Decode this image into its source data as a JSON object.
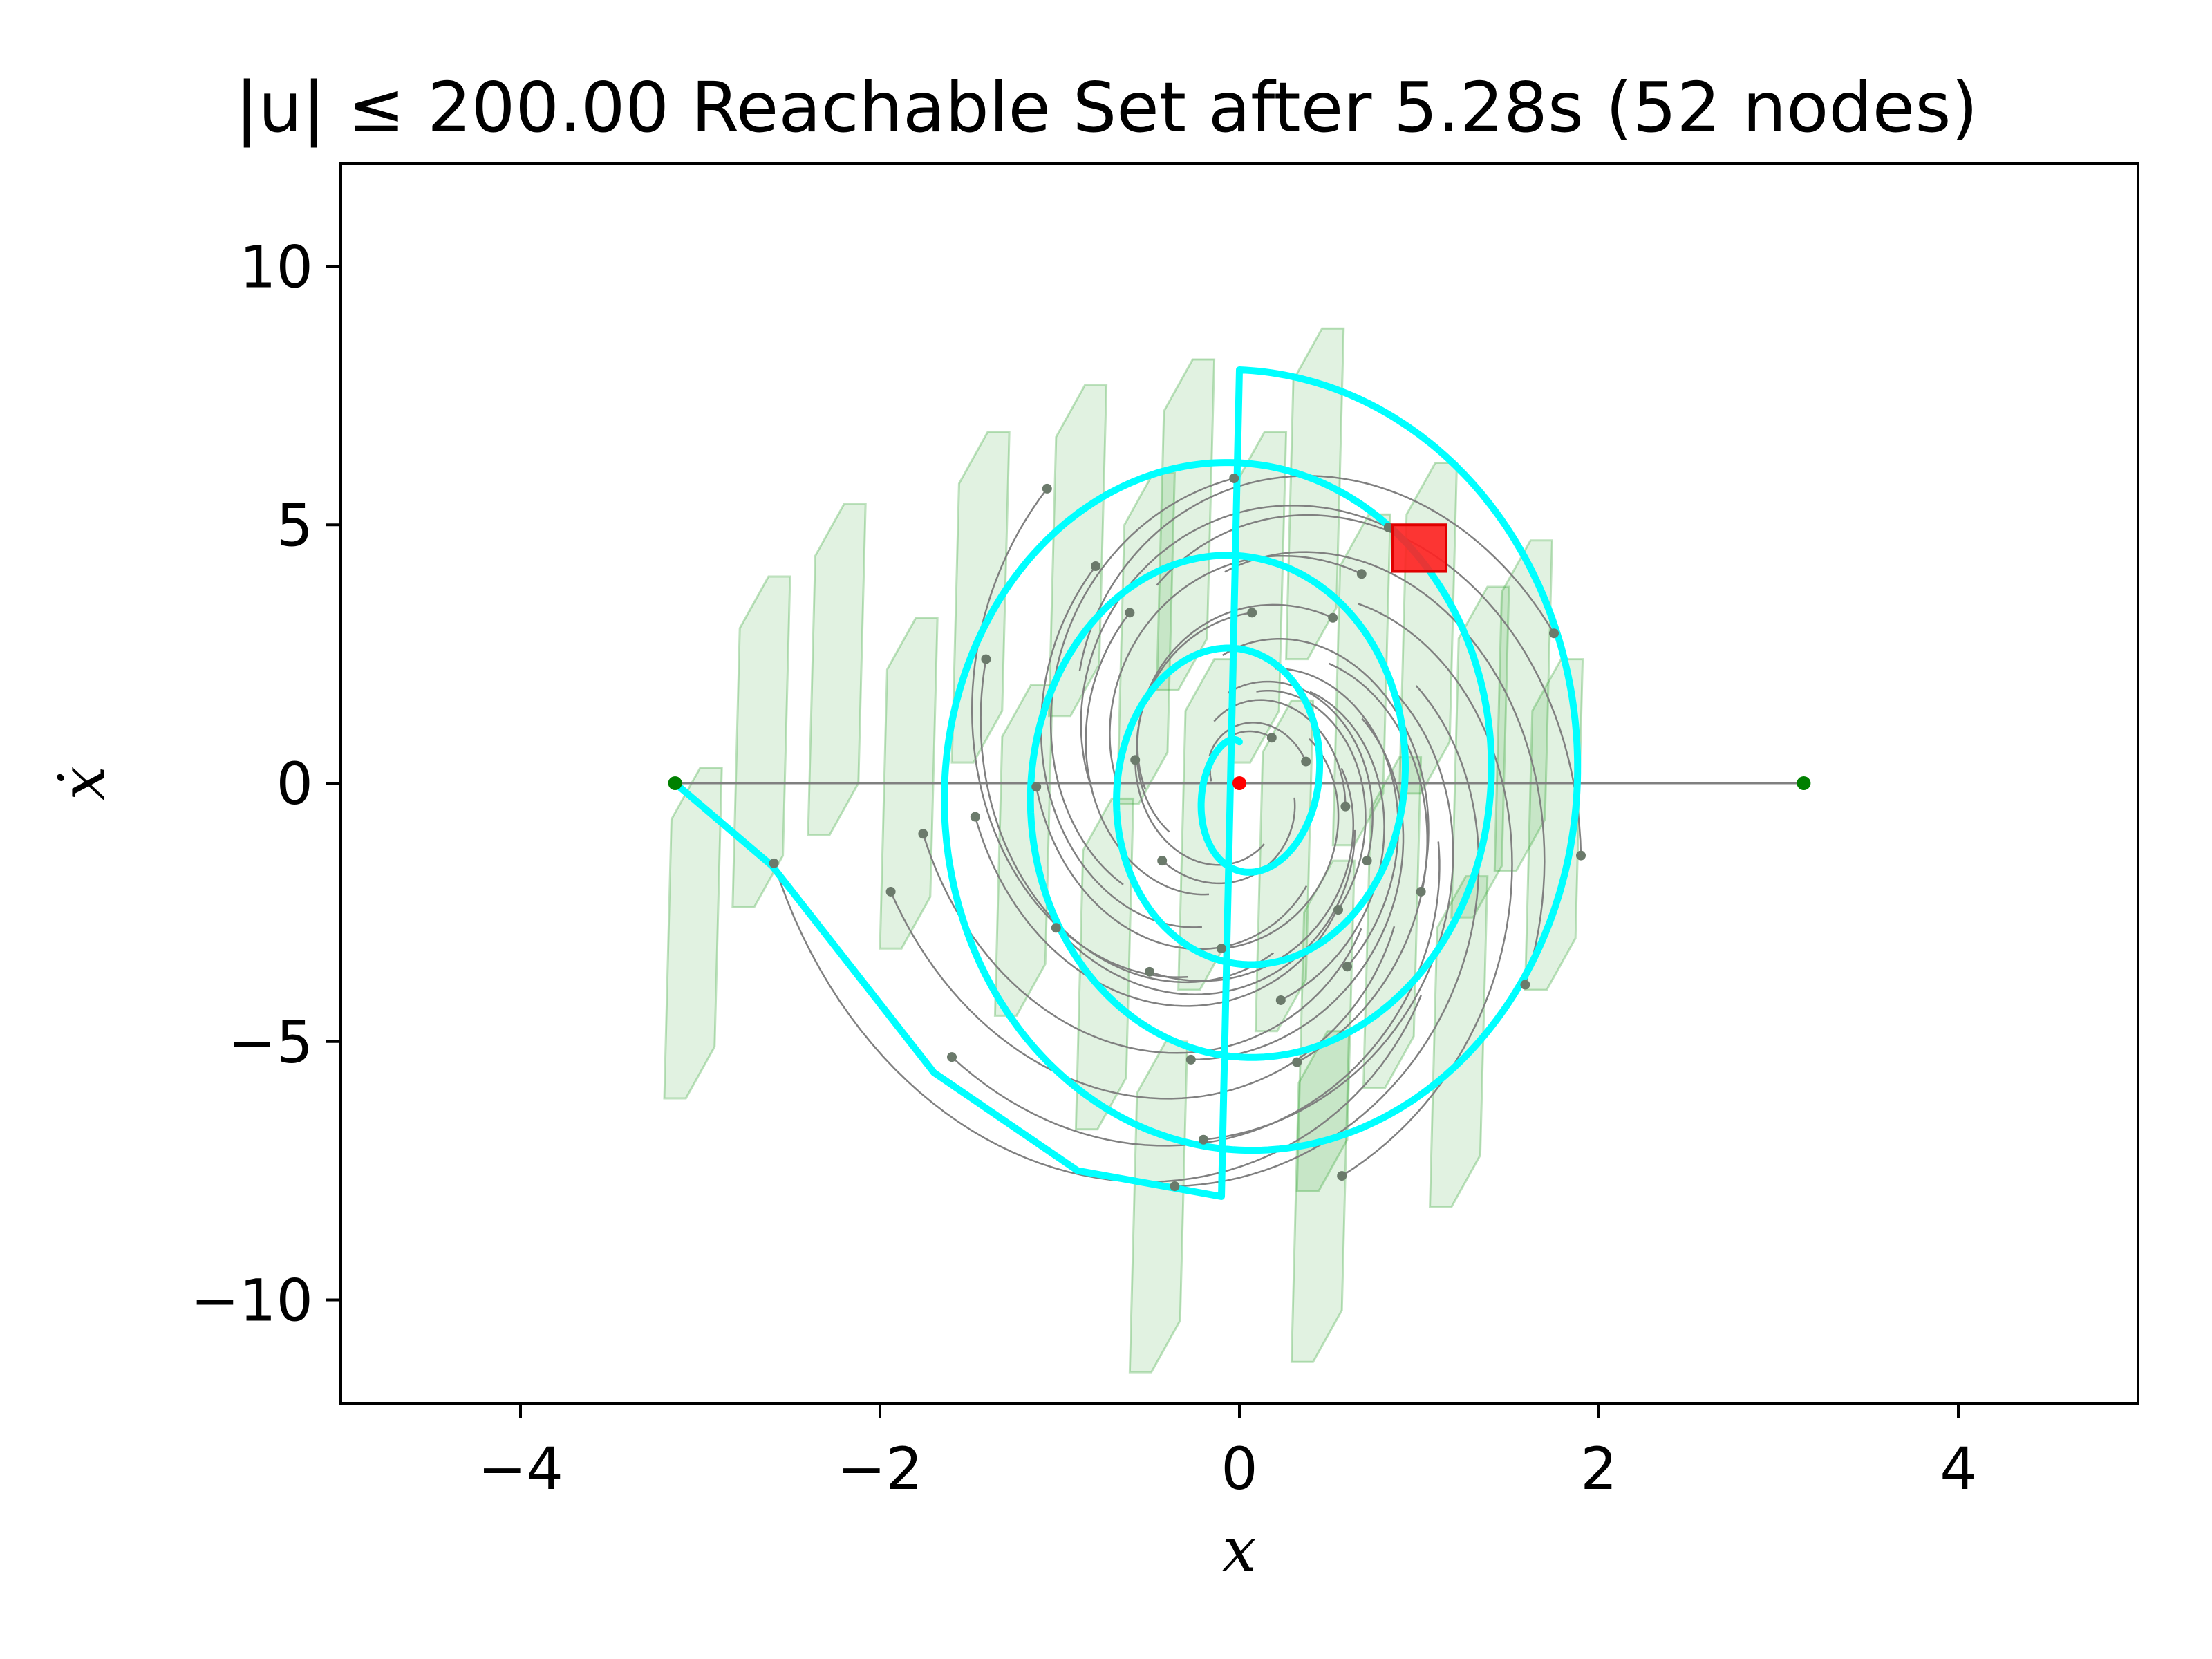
{
  "chart_data": {
    "type": "line",
    "title": "|u| ≤ 200.00 Reachable Set after 5.28s (52 nodes)",
    "xlabel": "x",
    "ylabel": "ẋ",
    "xlim": [
      -5,
      5
    ],
    "ylim": [
      -12,
      12
    ],
    "xticks": [
      -4,
      -2,
      0,
      2,
      4
    ],
    "xtick_labels": [
      "−4",
      "−2",
      "0",
      "2",
      "4"
    ],
    "yticks": [
      -10,
      -5,
      0,
      5,
      10
    ],
    "ytick_labels": [
      "−10",
      "−5",
      "0",
      "5",
      "10"
    ],
    "grid": false,
    "legend": "none",
    "colors": {
      "best_path": "#00ffff",
      "tree": "#808080",
      "reachable_fill": "#2ca02c",
      "goal": "#ff0000",
      "start_marker": "#ff0000",
      "endpoints": "#008000",
      "nodes": "#6b7a6b"
    },
    "start_point": {
      "x": 0,
      "y": 0
    },
    "goal_points": [
      {
        "x": -3.14,
        "y": 0
      },
      {
        "x": 3.14,
        "y": 0
      }
    ],
    "goal_box": {
      "x": [
        0.85,
        1.15
      ],
      "y": [
        4.1,
        5.0
      ]
    },
    "equilibrium_line": {
      "x": [
        -3.14,
        3.14
      ],
      "y": 0
    },
    "best_path_spiral": {
      "center": {
        "x": 0,
        "y": 0
      },
      "amplitude_x_start": 0.08,
      "amplitude_x_end": 2.0,
      "amplitude_y_start": 0.8,
      "amplitude_y_end": 8.0,
      "turns": 4.0
    },
    "best_path_tail": [
      {
        "x": -0.1,
        "y": -8.0
      },
      {
        "x": -0.9,
        "y": -7.5
      },
      {
        "x": -1.7,
        "y": -5.6
      },
      {
        "x": -2.6,
        "y": -1.6
      },
      {
        "x": -3.14,
        "y": 0
      }
    ],
    "tree_nodes": [
      {
        "x": -1.07,
        "y": 5.7
      },
      {
        "x": -0.03,
        "y": 5.9
      },
      {
        "x": 0.83,
        "y": 4.95
      },
      {
        "x": 0.68,
        "y": 4.05
      },
      {
        "x": -0.8,
        "y": 4.2
      },
      {
        "x": 0.52,
        "y": 3.2
      },
      {
        "x": -0.61,
        "y": 3.3
      },
      {
        "x": 0.07,
        "y": 3.3
      },
      {
        "x": -1.41,
        "y": 2.4
      },
      {
        "x": 0.18,
        "y": 0.88
      },
      {
        "x": 0.37,
        "y": 0.42
      },
      {
        "x": -0.58,
        "y": 0.45
      },
      {
        "x": -1.13,
        "y": -0.07
      },
      {
        "x": 0.59,
        "y": -0.45
      },
      {
        "x": -1.47,
        "y": -0.65
      },
      {
        "x": -1.76,
        "y": -0.98
      },
      {
        "x": -0.43,
        "y": -1.5
      },
      {
        "x": 0.71,
        "y": -1.5
      },
      {
        "x": -2.59,
        "y": -1.55
      },
      {
        "x": -1.94,
        "y": -2.1
      },
      {
        "x": 1.01,
        "y": -2.1
      },
      {
        "x": 0.55,
        "y": -2.45
      },
      {
        "x": -1.02,
        "y": -2.8
      },
      {
        "x": -0.1,
        "y": -3.2
      },
      {
        "x": 0.6,
        "y": -3.55
      },
      {
        "x": -0.5,
        "y": -3.65
      },
      {
        "x": 1.59,
        "y": -3.9
      },
      {
        "x": 0.23,
        "y": -4.2
      },
      {
        "x": -0.27,
        "y": -5.35
      },
      {
        "x": 0.32,
        "y": -5.4
      },
      {
        "x": -1.6,
        "y": -5.3
      },
      {
        "x": -0.2,
        "y": -6.9
      },
      {
        "x": 0.57,
        "y": -7.6
      },
      {
        "x": -0.36,
        "y": -7.8
      },
      {
        "x": 1.9,
        "y": -1.4
      },
      {
        "x": 1.75,
        "y": 2.9
      }
    ],
    "reachable_sets": [
      {
        "x": -3.04,
        "y": -2.9
      },
      {
        "x": -2.66,
        "y": 0.8
      },
      {
        "x": -2.24,
        "y": 2.2
      },
      {
        "x": -1.84,
        "y": 0.0
      },
      {
        "x": -1.44,
        "y": 3.6
      },
      {
        "x": -1.2,
        "y": -1.3
      },
      {
        "x": -0.9,
        "y": 4.5
      },
      {
        "x": -0.75,
        "y": -3.5
      },
      {
        "x": -0.52,
        "y": 2.8
      },
      {
        "x": -0.3,
        "y": 5.0
      },
      {
        "x": -0.18,
        "y": -0.8
      },
      {
        "x": -0.45,
        "y": -8.2
      },
      {
        "x": 0.1,
        "y": 3.6
      },
      {
        "x": 0.25,
        "y": -1.6
      },
      {
        "x": 0.42,
        "y": 5.6
      },
      {
        "x": 0.48,
        "y": -4.7
      },
      {
        "x": 0.45,
        "y": -8.0
      },
      {
        "x": 0.68,
        "y": 2.0
      },
      {
        "x": 0.85,
        "y": -2.7
      },
      {
        "x": 1.05,
        "y": 3.0
      },
      {
        "x": 1.22,
        "y": -5.0
      },
      {
        "x": 1.34,
        "y": 0.6
      },
      {
        "x": 1.58,
        "y": 1.5
      },
      {
        "x": 1.75,
        "y": -0.8
      }
    ]
  }
}
